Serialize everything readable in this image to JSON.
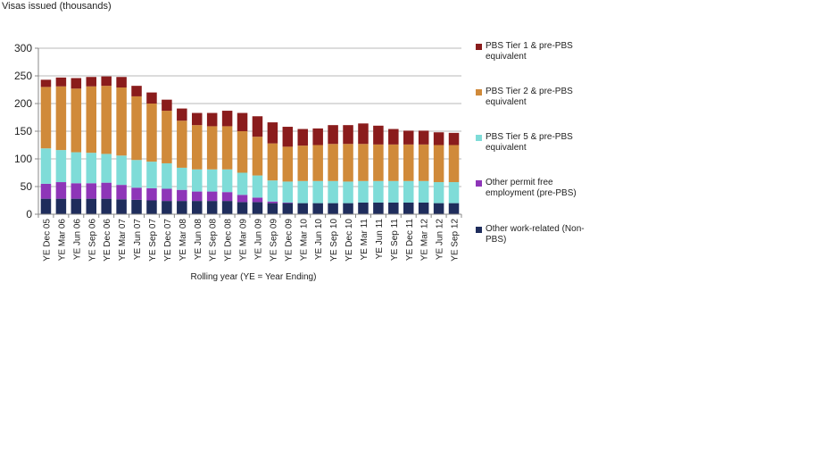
{
  "chart_data": {
    "type": "stacked-bar",
    "title": "",
    "ylabel": "Visas issued  (thousands)",
    "xlabel": "Rolling year (YE = Year Ending)",
    "ylim": [
      0,
      300
    ],
    "yticks": [
      0,
      50,
      100,
      150,
      200,
      250,
      300
    ],
    "grid": true,
    "legend_position": "right",
    "categories": [
      "YE Dec 05",
      "YE Mar 06",
      "YE Jun 06",
      "YE Sep 06",
      "YE Dec 06",
      "YE Mar 07",
      "YE Jun 07",
      "YE Sep 07",
      "YE Dec 07",
      "YE Mar 08",
      "YE Jun 08",
      "YE Sep 08",
      "YE Dec 08",
      "YE Mar 09",
      "YE Jun 09",
      "YE Sep 09",
      "YE Dec 09",
      "YE Mar 10",
      "YE Jun 10",
      "YE Sep 10",
      "YE Dec 10",
      "YE Mar 11",
      "YE Jun 11",
      "YE Sep 11",
      "YE Dec 11",
      "YE Mar 12",
      "YE Jun 12",
      "YE Sep 12"
    ],
    "series": [
      {
        "name": "Other work-related (Non-PBS)",
        "color": "#1f2d5c",
        "values": [
          28,
          28,
          28,
          28,
          28,
          27,
          26,
          25,
          24,
          24,
          24,
          24,
          24,
          22,
          22,
          20,
          20,
          20,
          20,
          20,
          20,
          21,
          21,
          21,
          21,
          21,
          20,
          20
        ]
      },
      {
        "name": "Other permit free employment (pre-PBS)",
        "color": "#8e35b8",
        "values": [
          27,
          30,
          28,
          28,
          29,
          26,
          22,
          22,
          22,
          20,
          17,
          17,
          16,
          13,
          8,
          3,
          1,
          0,
          0,
          0,
          0,
          0,
          0,
          0,
          0,
          0,
          0,
          0
        ]
      },
      {
        "name": "PBS Tier 5 & pre-PBS equivalent",
        "color": "#7fdcd8",
        "values": [
          64,
          58,
          56,
          55,
          52,
          53,
          50,
          48,
          46,
          40,
          40,
          40,
          41,
          40,
          40,
          38,
          38,
          40,
          40,
          40,
          39,
          39,
          39,
          39,
          39,
          39,
          38,
          38
        ]
      },
      {
        "name": "PBS Tier 2 & pre-PBS equivalent",
        "color": "#d08a3a",
        "values": [
          111,
          115,
          115,
          120,
          123,
          123,
          115,
          105,
          95,
          85,
          80,
          78,
          78,
          75,
          70,
          67,
          63,
          64,
          65,
          67,
          68,
          67,
          66,
          66,
          66,
          66,
          67,
          67
        ]
      },
      {
        "name": "PBS Tier 1 & pre-PBS equivalent",
        "color": "#8a1c1c",
        "values": [
          13,
          16,
          19,
          17,
          17,
          19,
          19,
          20,
          20,
          22,
          22,
          24,
          28,
          33,
          37,
          38,
          36,
          30,
          30,
          34,
          34,
          37,
          34,
          28,
          25,
          25,
          23,
          22
        ]
      }
    ],
    "legend": [
      {
        "label": "PBS Tier 1 & pre-PBS equivalent",
        "color": "#8a1c1c"
      },
      {
        "label": "PBS Tier 2 & pre-PBS equivalent",
        "color": "#d08a3a"
      },
      {
        "label": "PBS Tier 5 & pre-PBS equivalent",
        "color": "#7fdcd8"
      },
      {
        "label": "Other permit free employment (pre-PBS)",
        "color": "#8e35b8"
      },
      {
        "label": "Other work-related (Non-PBS)",
        "color": "#1f2d5c"
      }
    ]
  }
}
